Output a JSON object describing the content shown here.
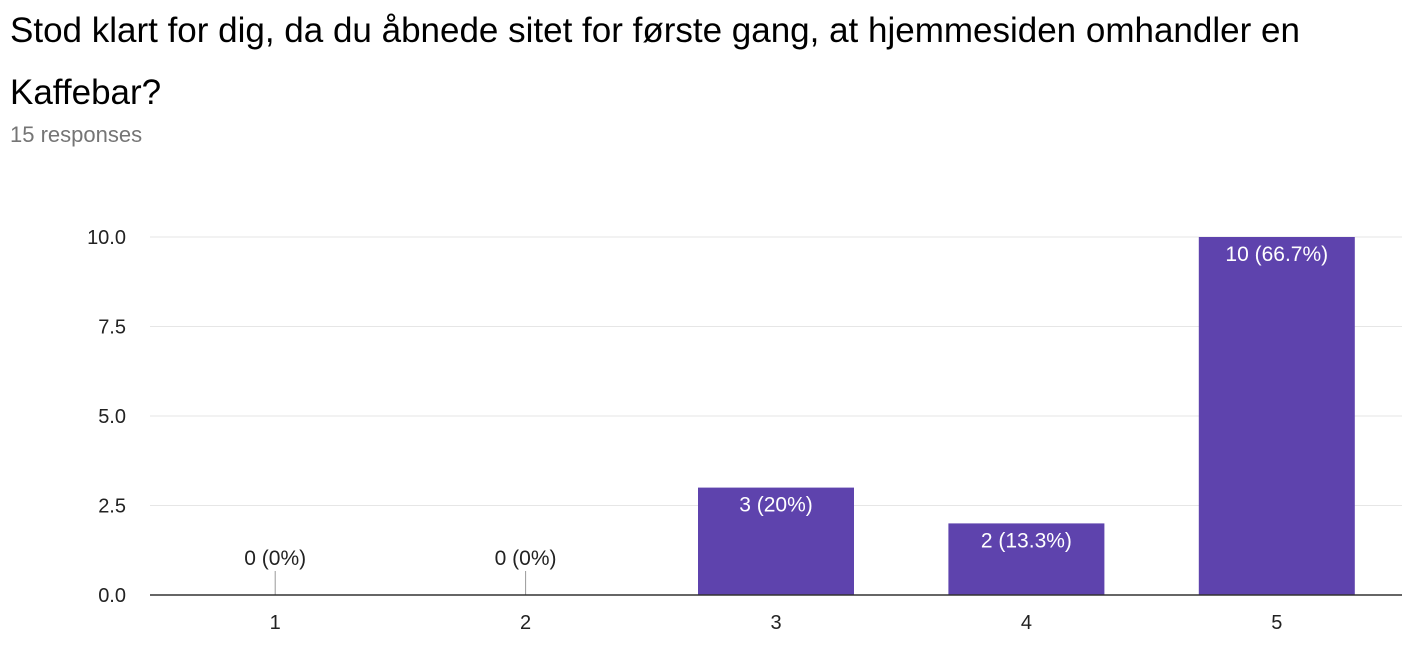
{
  "question": {
    "title": "Stod klart for dig, da du åbnede sitet for første gang, at hjemmesiden omhandler en Kaffebar?",
    "responses": "15 responses"
  },
  "colors": {
    "bar": "#5e43ad",
    "grid": "#e6e6e6",
    "axis": "#333333",
    "label_inside": "#ffffff",
    "label_outside": "#222222"
  },
  "chart_data": {
    "type": "bar",
    "categories": [
      "1",
      "2",
      "3",
      "4",
      "5"
    ],
    "values": [
      0,
      0,
      3,
      2,
      10
    ],
    "data_labels": [
      "0 (0%)",
      "0 (0%)",
      "3 (20%)",
      "2 (13.3%)",
      "10 (66.7%)"
    ],
    "ylim": [
      0,
      10
    ],
    "yticks": [
      0,
      2.5,
      5,
      7.5,
      10
    ],
    "ytick_labels": [
      "0.0",
      "2.5",
      "5.0",
      "7.5",
      "10.0"
    ],
    "grid": true,
    "legend": "none"
  }
}
